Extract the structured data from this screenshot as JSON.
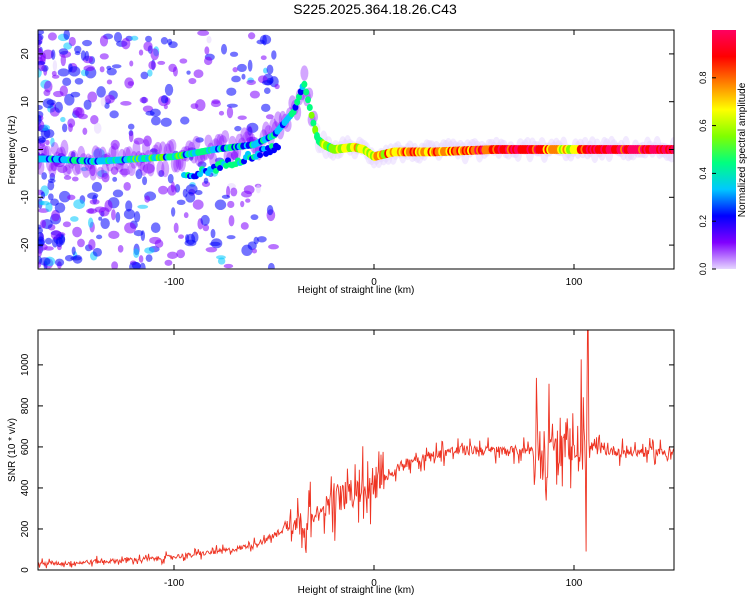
{
  "title": "S225.2025.364.18.26.C43",
  "chart_data": [
    {
      "type": "heatmap",
      "name": "spectrogram",
      "xlabel": "Height of straight line (km)",
      "ylabel": "Frequency (Hz)",
      "xlim": [
        -168,
        150
      ],
      "ylim": [
        -25,
        25
      ],
      "xticks": [
        -100,
        0,
        100
      ],
      "xtick_labels": [
        "-100",
        "0",
        "100"
      ],
      "yticks": [
        -20,
        -10,
        0,
        10,
        20
      ],
      "ytick_labels": [
        "-20",
        "-10",
        "0",
        "10",
        "20"
      ],
      "colorbar": {
        "label": "Normalized spectral amplitude",
        "range": [
          0,
          1
        ],
        "ticks": [
          0.0,
          0.2,
          0.4,
          0.6,
          0.8
        ],
        "tick_labels": [
          "0.0",
          "0.2",
          "0.4",
          "0.6",
          "0.8"
        ],
        "colormap": [
          "#e6d6ff",
          "#8000ff",
          "#0000ff",
          "#00c8ff",
          "#00ff80",
          "#80ff00",
          "#ffff00",
          "#ff8000",
          "#ff0000",
          "#ff0060"
        ]
      },
      "ridge_x": [
        -160,
        -140,
        -120,
        -100,
        -80,
        -60,
        -50,
        -40,
        -35,
        -30,
        -28,
        -25,
        -20,
        -10,
        -5,
        0,
        10,
        30,
        60,
        80,
        95,
        100,
        105,
        120,
        150
      ],
      "ridge_y": [
        -2,
        -2.5,
        -2,
        -1.5,
        0,
        1,
        3,
        8,
        14,
        5,
        2,
        1,
        0,
        0.5,
        0,
        -1.5,
        -0.5,
        -0.5,
        0,
        0,
        0,
        0,
        0,
        0,
        0
      ],
      "ridge_amplitude": [
        0.3,
        0.35,
        0.4,
        0.4,
        0.35,
        0.3,
        0.3,
        0.35,
        0.3,
        0.55,
        0.5,
        0.5,
        0.55,
        0.65,
        0.6,
        0.65,
        0.75,
        0.8,
        0.85,
        0.9,
        0.7,
        0.6,
        0.95,
        0.95,
        0.95
      ]
    },
    {
      "type": "line",
      "name": "snr",
      "xlabel": "Height of straight line (km)",
      "ylabel": "SNR (10 * v/v)",
      "xlim": [
        -168,
        150
      ],
      "ylim": [
        0,
        1170
      ],
      "xticks": [
        -100,
        0,
        100
      ],
      "xtick_labels": [
        "-100",
        "0",
        "100"
      ],
      "yticks": [
        0,
        200,
        400,
        600,
        800,
        1000
      ],
      "ytick_labels": [
        "0",
        "200",
        "400",
        "600",
        "800",
        "1000"
      ],
      "color": "#ee3322",
      "series": [
        {
          "name": "SNR",
          "x": [
            -168,
            -150,
            -130,
            -110,
            -90,
            -70,
            -55,
            -45,
            -40,
            -35,
            -30,
            -25,
            -20,
            -15,
            -10,
            -5,
            0,
            5,
            10,
            15,
            20,
            25,
            30,
            35,
            40,
            50,
            60,
            70,
            80,
            85,
            90,
            95,
            100,
            105,
            108,
            110,
            120,
            130,
            150
          ],
          "y": [
            30,
            35,
            45,
            55,
            75,
            100,
            140,
            200,
            250,
            230,
            270,
            300,
            360,
            350,
            380,
            380,
            400,
            450,
            480,
            520,
            540,
            550,
            560,
            575,
            580,
            585,
            580,
            580,
            590,
            600,
            590,
            600,
            600,
            620,
            610,
            590,
            580,
            575,
            575
          ]
        }
      ],
      "bursts": [
        {
          "x": [
            -45,
            -30
          ],
          "spread": 150
        },
        {
          "x": [
            -25,
            5
          ],
          "spread": 200
        },
        {
          "x": [
            80,
            108
          ],
          "spread": 450
        }
      ],
      "peak": {
        "x": 107,
        "y": 1170
      },
      "trough": {
        "x": 106,
        "y": 90
      }
    }
  ]
}
